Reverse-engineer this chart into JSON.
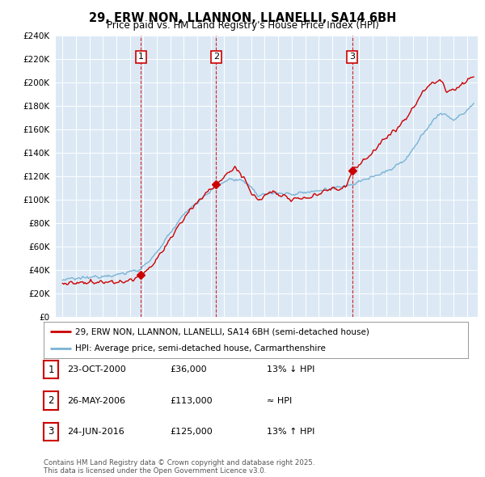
{
  "title": "29, ERW NON, LLANNON, LLANELLI, SA14 6BH",
  "subtitle": "Price paid vs. HM Land Registry's House Price Index (HPI)",
  "plot_bg_color": "#dce9f5",
  "sale_color": "#cc0000",
  "hpi_color": "#7ab3d4",
  "vline_color": "#cc0000",
  "ylim": [
    0,
    240000
  ],
  "yticks": [
    0,
    20000,
    40000,
    60000,
    80000,
    100000,
    120000,
    140000,
    160000,
    180000,
    200000,
    220000,
    240000
  ],
  "sale_dates": [
    2000.81,
    2006.4,
    2016.48
  ],
  "sale_prices": [
    36000,
    113000,
    125000
  ],
  "sale_labels": [
    "1",
    "2",
    "3"
  ],
  "legend_sale": "29, ERW NON, LLANNON, LLANELLI, SA14 6BH (semi-detached house)",
  "legend_hpi": "HPI: Average price, semi-detached house, Carmarthenshire",
  "table_rows": [
    {
      "num": "1",
      "date": "23-OCT-2000",
      "price": "£36,000",
      "rel": "13% ↓ HPI"
    },
    {
      "num": "2",
      "date": "26-MAY-2006",
      "price": "£113,000",
      "rel": "≈ HPI"
    },
    {
      "num": "3",
      "date": "24-JUN-2016",
      "price": "£125,000",
      "rel": "13% ↑ HPI"
    }
  ],
  "footer": "Contains HM Land Registry data © Crown copyright and database right 2025.\nThis data is licensed under the Open Government Licence v3.0.",
  "xmin": 1994.5,
  "xmax": 2025.8
}
